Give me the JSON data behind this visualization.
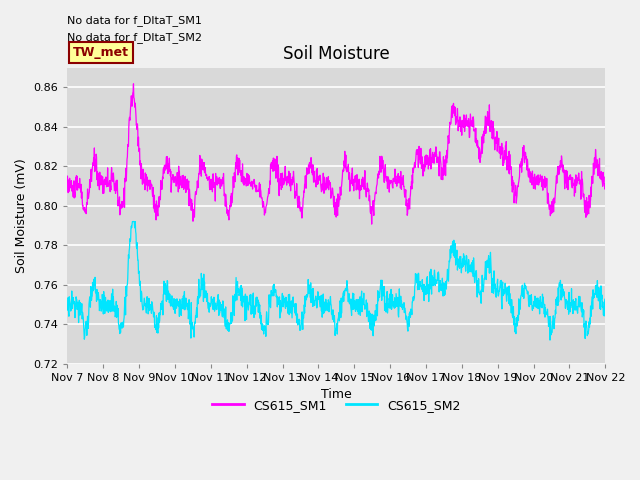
{
  "title": "Soil Moisture",
  "ylabel": "Soil Moisture (mV)",
  "xlabel": "Time",
  "ylim": [
    0.72,
    0.87
  ],
  "yticks": [
    0.72,
    0.74,
    0.76,
    0.78,
    0.8,
    0.82,
    0.84,
    0.86
  ],
  "xtick_labels": [
    "Nov 7",
    "Nov 8",
    "Nov 9",
    "Nov 10",
    "Nov 11",
    "Nov 12",
    "Nov 13",
    "Nov 14",
    "Nov 15",
    "Nov 16",
    "Nov 17",
    "Nov 18",
    "Nov 19",
    "Nov 20",
    "Nov 21",
    "Nov 22"
  ],
  "text_no_data_1": "No data for f_DltaT_SM1",
  "text_no_data_2": "No data for f_DltaT_SM2",
  "tw_met_label": "TW_met",
  "tw_met_bg": "#ffff99",
  "tw_met_border": "#8b0000",
  "tw_met_text": "#8b0000",
  "color_sm1": "#ff00ff",
  "color_sm2": "#00e5ff",
  "legend_sm1": "CS615_SM1",
  "legend_sm2": "CS615_SM2",
  "plot_bg_color": "#d9d9d9",
  "fig_bg_color": "#f0f0f0",
  "grid_color": "#ffffff",
  "title_fontsize": 12,
  "label_fontsize": 9,
  "tick_fontsize": 8,
  "annotation_fontsize": 8
}
